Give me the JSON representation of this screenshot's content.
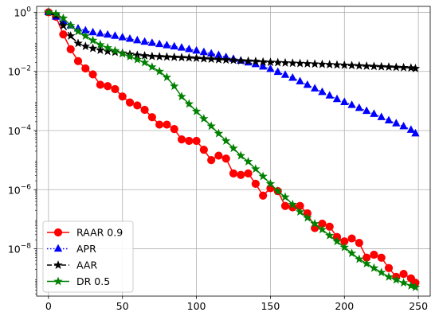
{
  "chart_data": {
    "type": "line",
    "y_scale": "log",
    "xlim": [
      -8,
      258
    ],
    "ylim_exponent": [
      -9.6,
      0.2
    ],
    "x_ticks": [
      0,
      50,
      100,
      150,
      200,
      250
    ],
    "y_tick_exponents": [
      0,
      -2,
      -4,
      -6,
      -8
    ],
    "grid": true,
    "legend_position": "lower-left",
    "series": [
      {
        "name": "RAAR 0.9",
        "color": "#ff0000",
        "line_style": "solid",
        "marker": "circle",
        "x": [
          0,
          5,
          10,
          15,
          20,
          25,
          30,
          35,
          40,
          45,
          50,
          55,
          60,
          65,
          70,
          75,
          80,
          85,
          90,
          95,
          100,
          105,
          110,
          115,
          120,
          125,
          130,
          135,
          140,
          145,
          150,
          155,
          160,
          165,
          170,
          175,
          180,
          185,
          190,
          195,
          200,
          205,
          210,
          215,
          220,
          225,
          230,
          235,
          240,
          245,
          248
        ],
        "log10_y": [
          0,
          -0.15,
          -0.75,
          -1.25,
          -1.65,
          -1.9,
          -2.1,
          -2.45,
          -2.5,
          -2.6,
          -2.85,
          -3.05,
          -3.15,
          -3.3,
          -3.55,
          -3.8,
          -3.8,
          -3.95,
          -4.3,
          -4.35,
          -4.35,
          -4.65,
          -5,
          -4.85,
          -4.95,
          -5.45,
          -5.5,
          -5.45,
          -5.8,
          -6.2,
          -5.95,
          -6.05,
          -6.55,
          -6.6,
          -6.55,
          -6.8,
          -7.3,
          -7.15,
          -7.25,
          -7.6,
          -7.75,
          -7.65,
          -7.8,
          -8.3,
          -8.2,
          -8.3,
          -8.65,
          -8.95,
          -8.85,
          -9,
          -9.15
        ]
      },
      {
        "name": "APR",
        "color": "#0000ff",
        "line_style": "dotted",
        "marker": "triangle",
        "x": [
          0,
          5,
          10,
          15,
          20,
          25,
          30,
          35,
          40,
          45,
          50,
          55,
          60,
          65,
          70,
          75,
          80,
          85,
          90,
          95,
          100,
          105,
          110,
          115,
          120,
          125,
          130,
          135,
          140,
          145,
          150,
          155,
          160,
          165,
          170,
          175,
          180,
          185,
          190,
          195,
          200,
          205,
          210,
          215,
          220,
          225,
          230,
          235,
          240,
          245,
          248
        ],
        "log10_y": [
          0,
          -0.15,
          -0.3,
          -0.45,
          -0.55,
          -0.62,
          -0.68,
          -0.72,
          -0.76,
          -0.8,
          -0.85,
          -0.9,
          -0.95,
          -1,
          -1.04,
          -1.08,
          -1.12,
          -1.16,
          -1.2,
          -1.25,
          -1.3,
          -1.35,
          -1.4,
          -1.45,
          -1.52,
          -1.58,
          -1.64,
          -1.7,
          -1.76,
          -1.84,
          -1.92,
          -2.02,
          -2.12,
          -2.22,
          -2.34,
          -2.46,
          -2.58,
          -2.7,
          -2.82,
          -2.94,
          -3.04,
          -3.14,
          -3.24,
          -3.34,
          -3.44,
          -3.55,
          -3.66,
          -3.76,
          -3.86,
          -3.98,
          -4.1
        ]
      },
      {
        "name": "AAR",
        "color": "#000000",
        "line_style": "dashed",
        "marker": "star",
        "x": [
          0,
          5,
          10,
          15,
          20,
          25,
          30,
          35,
          40,
          45,
          50,
          55,
          60,
          65,
          70,
          75,
          80,
          85,
          90,
          95,
          100,
          105,
          110,
          115,
          120,
          125,
          130,
          135,
          140,
          145,
          150,
          155,
          160,
          165,
          170,
          175,
          180,
          185,
          190,
          195,
          200,
          205,
          210,
          215,
          220,
          225,
          230,
          235,
          240,
          245,
          248
        ],
        "log10_y": [
          0,
          -0.1,
          -0.45,
          -0.8,
          -1.05,
          -1.15,
          -1.22,
          -1.28,
          -1.32,
          -1.35,
          -1.38,
          -1.42,
          -1.45,
          -1.47,
          -1.49,
          -1.5,
          -1.51,
          -1.52,
          -1.53,
          -1.54,
          -1.55,
          -1.57,
          -1.58,
          -1.6,
          -1.61,
          -1.62,
          -1.64,
          -1.65,
          -1.66,
          -1.68,
          -1.69,
          -1.7,
          -1.71,
          -1.72,
          -1.73,
          -1.74,
          -1.75,
          -1.76,
          -1.77,
          -1.78,
          -1.79,
          -1.8,
          -1.81,
          -1.82,
          -1.83,
          -1.84,
          -1.85,
          -1.86,
          -1.87,
          -1.88,
          -1.9
        ]
      },
      {
        "name": "DR 0.5",
        "color": "#008000",
        "line_style": "solid",
        "marker": "star",
        "x": [
          0,
          5,
          10,
          15,
          20,
          25,
          30,
          35,
          40,
          45,
          50,
          55,
          60,
          65,
          70,
          75,
          80,
          85,
          90,
          95,
          100,
          105,
          110,
          115,
          120,
          125,
          130,
          135,
          140,
          145,
          150,
          155,
          160,
          165,
          170,
          175,
          180,
          185,
          190,
          195,
          200,
          205,
          210,
          215,
          220,
          225,
          230,
          235,
          240,
          245,
          248
        ],
        "log10_y": [
          0,
          -0.05,
          -0.2,
          -0.45,
          -0.65,
          -0.8,
          -0.95,
          -1.1,
          -1.2,
          -1.3,
          -1.4,
          -1.5,
          -1.6,
          -1.7,
          -1.85,
          -2,
          -2.2,
          -2.5,
          -2.85,
          -3.1,
          -3.35,
          -3.6,
          -3.85,
          -4.1,
          -4.35,
          -4.6,
          -4.85,
          -5.05,
          -5.3,
          -5.55,
          -5.8,
          -6.05,
          -6.25,
          -6.5,
          -6.75,
          -6.95,
          -7.15,
          -7.35,
          -7.55,
          -7.75,
          -7.95,
          -8.15,
          -8.35,
          -8.5,
          -8.65,
          -8.8,
          -8.95,
          -9.05,
          -9.15,
          -9.25,
          -9.3
        ]
      }
    ]
  }
}
